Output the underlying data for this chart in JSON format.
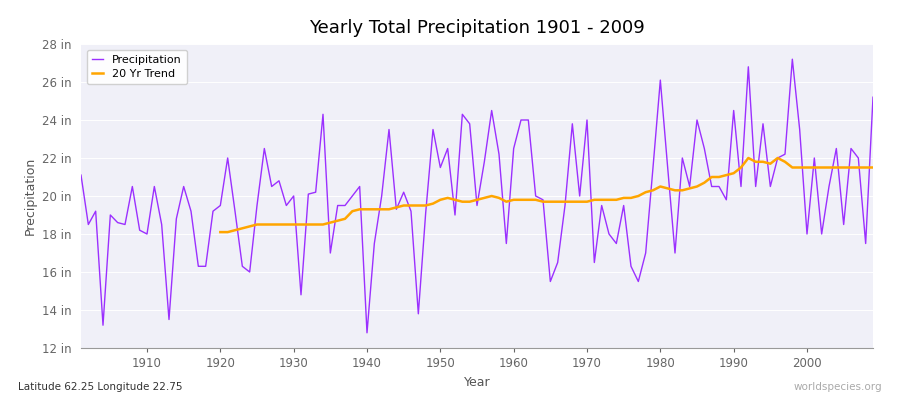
{
  "title": "Yearly Total Precipitation 1901 - 2009",
  "xlabel": "Year",
  "ylabel": "Precipitation",
  "bottom_left_label": "Latitude 62.25 Longitude 22.75",
  "bottom_right_label": "worldspecies.org",
  "ylim": [
    12,
    28
  ],
  "ytick_labels": [
    "12 in",
    "14 in",
    "16 in",
    "18 in",
    "20 in",
    "22 in",
    "24 in",
    "26 in",
    "28 in"
  ],
  "ytick_values": [
    12,
    14,
    16,
    18,
    20,
    22,
    24,
    26,
    28
  ],
  "xtick_values": [
    1910,
    1920,
    1930,
    1940,
    1950,
    1960,
    1970,
    1980,
    1990,
    2000
  ],
  "precip_color": "#9B30FF",
  "trend_color": "#FFA500",
  "bg_color": "#FFFFFF",
  "plot_bg_color": "#F0F0F8",
  "grid_color": "#FFFFFF",
  "bottom_left_color": "#333333",
  "bottom_right_color": "#AAAAAA",
  "legend_entries": [
    "Precipitation",
    "20 Yr Trend"
  ],
  "years": [
    1901,
    1902,
    1903,
    1904,
    1905,
    1906,
    1907,
    1908,
    1909,
    1910,
    1911,
    1912,
    1913,
    1914,
    1915,
    1916,
    1917,
    1918,
    1919,
    1920,
    1921,
    1922,
    1923,
    1924,
    1925,
    1926,
    1927,
    1928,
    1929,
    1930,
    1931,
    1932,
    1933,
    1934,
    1935,
    1936,
    1937,
    1938,
    1939,
    1940,
    1941,
    1942,
    1943,
    1944,
    1945,
    1946,
    1947,
    1948,
    1949,
    1950,
    1951,
    1952,
    1953,
    1954,
    1955,
    1956,
    1957,
    1958,
    1959,
    1960,
    1961,
    1962,
    1963,
    1964,
    1965,
    1966,
    1967,
    1968,
    1969,
    1970,
    1971,
    1972,
    1973,
    1974,
    1975,
    1976,
    1977,
    1978,
    1979,
    1980,
    1981,
    1982,
    1983,
    1984,
    1985,
    1986,
    1987,
    1988,
    1989,
    1990,
    1991,
    1992,
    1993,
    1994,
    1995,
    1996,
    1997,
    1998,
    1999,
    2000,
    2001,
    2002,
    2003,
    2004,
    2005,
    2006,
    2007,
    2008,
    2009
  ],
  "precipitation": [
    21.1,
    18.5,
    19.2,
    13.2,
    19.0,
    18.6,
    18.5,
    20.5,
    18.2,
    18.0,
    20.5,
    18.5,
    13.5,
    18.8,
    20.5,
    19.2,
    16.3,
    16.3,
    19.2,
    19.5,
    22.0,
    19.2,
    16.3,
    16.0,
    19.5,
    22.5,
    20.5,
    20.8,
    19.5,
    20.0,
    14.8,
    20.1,
    20.2,
    24.3,
    17.0,
    19.5,
    19.5,
    20.0,
    20.5,
    12.8,
    17.5,
    20.0,
    23.5,
    19.3,
    20.2,
    19.2,
    13.8,
    19.1,
    23.5,
    21.5,
    22.5,
    19.0,
    24.3,
    23.8,
    19.5,
    21.8,
    24.5,
    22.2,
    17.5,
    22.5,
    24.0,
    24.0,
    20.0,
    19.8,
    15.5,
    16.5,
    19.5,
    23.8,
    20.0,
    24.0,
    16.5,
    19.5,
    18.0,
    17.5,
    19.5,
    16.3,
    15.5,
    17.0,
    21.5,
    26.1,
    21.5,
    17.0,
    22.0,
    20.5,
    24.0,
    22.5,
    20.5,
    20.5,
    19.8,
    24.5,
    20.5,
    26.8,
    20.5,
    23.8,
    20.5,
    22.0,
    22.2,
    27.2,
    23.5,
    18.0,
    22.0,
    18.0,
    20.5,
    22.5,
    18.5,
    22.5,
    22.0,
    17.5,
    25.2
  ],
  "trend": [
    null,
    null,
    null,
    null,
    null,
    null,
    null,
    null,
    null,
    null,
    null,
    null,
    null,
    null,
    null,
    null,
    null,
    null,
    null,
    18.1,
    18.1,
    18.2,
    18.3,
    18.4,
    18.5,
    18.5,
    18.5,
    18.5,
    18.5,
    18.5,
    18.5,
    18.5,
    18.5,
    18.5,
    18.6,
    18.7,
    18.8,
    19.2,
    19.3,
    19.3,
    19.3,
    19.3,
    19.3,
    19.4,
    19.5,
    19.5,
    19.5,
    19.5,
    19.6,
    19.8,
    19.9,
    19.8,
    19.7,
    19.7,
    19.8,
    19.9,
    20.0,
    19.9,
    19.7,
    19.8,
    19.8,
    19.8,
    19.8,
    19.7,
    19.7,
    19.7,
    19.7,
    19.7,
    19.7,
    19.7,
    19.8,
    19.8,
    19.8,
    19.8,
    19.9,
    19.9,
    20.0,
    20.2,
    20.3,
    20.5,
    20.4,
    20.3,
    20.3,
    20.4,
    20.5,
    20.7,
    21.0,
    21.0,
    21.1,
    21.2,
    21.5,
    22.0,
    21.8,
    21.8,
    21.7,
    22.0,
    21.8,
    21.5,
    21.5,
    21.5,
    21.5,
    21.5,
    21.5,
    21.5,
    21.5,
    21.5,
    21.5,
    21.5,
    21.5
  ]
}
